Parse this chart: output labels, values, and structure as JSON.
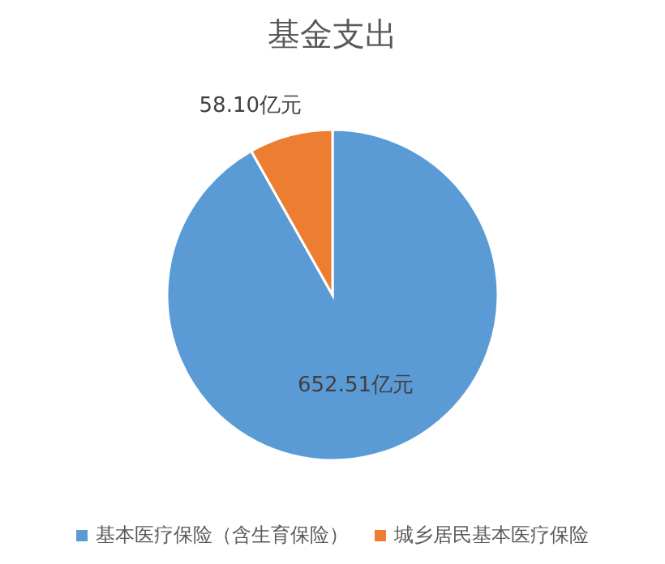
{
  "chart_data": {
    "type": "pie",
    "title": "基金支出",
    "categories": [
      "基本医疗保险（含生育保险）",
      "城乡居民基本医疗保险"
    ],
    "values": [
      652.51,
      58.1
    ],
    "colors": [
      "#5b9bd5",
      "#ed7d31"
    ],
    "value_labels": [
      "652.51亿元",
      "58.10亿元"
    ],
    "legend": "bottom"
  }
}
